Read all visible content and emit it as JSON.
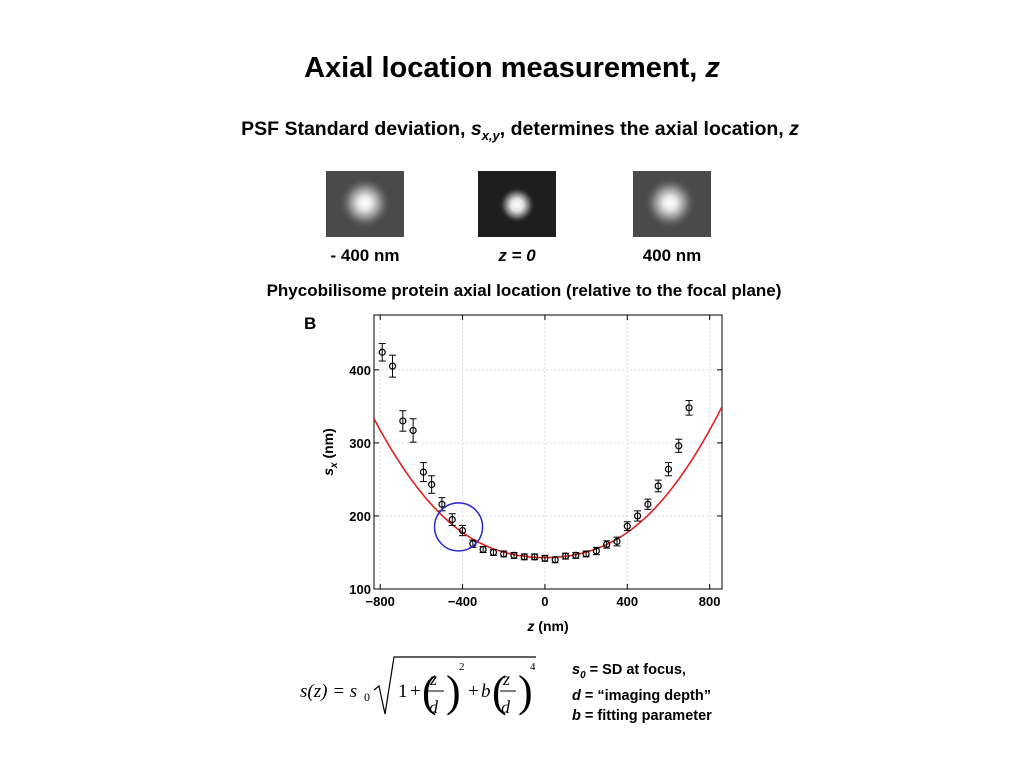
{
  "header": {
    "title": "Axial location measurement,",
    "title_var": "z",
    "subtitle_pre": "PSF Standard deviation,",
    "subtitle_sym": "s",
    "subtitle_sub": "x,y",
    "subtitle_mid": ", determines the axial location,",
    "subtitle_var": "z"
  },
  "psf_images": [
    {
      "label": "- 400 nm",
      "italic": false
    },
    {
      "label": "z = 0",
      "italic": true
    },
    {
      "label": "400 nm",
      "italic": false
    }
  ],
  "caption": "Phycobilisome protein axial location (relative to the focal plane)",
  "chart_data": {
    "type": "scatter",
    "panel_label": "B",
    "xlabel_sym": "z",
    "xlabel_unit": "(nm)",
    "ylabel_sym": "s",
    "ylabel_sub": "x",
    "ylabel_unit": "(nm)",
    "xlim": [
      -830,
      860
    ],
    "ylim": [
      100,
      475
    ],
    "xticks": [
      -800,
      -400,
      0,
      400,
      800
    ],
    "xtick_labels": [
      "−800",
      "−400",
      "0",
      "400",
      "800"
    ],
    "yticks": [
      100,
      200,
      300,
      400
    ],
    "ytick_labels": [
      "100",
      "200",
      "300",
      "400"
    ],
    "grid": true,
    "fit": {
      "s0": 143,
      "d": 640,
      "b": 0.97,
      "color": "#e02020"
    },
    "points": [
      {
        "x": -790,
        "y": 424,
        "err": 12
      },
      {
        "x": -740,
        "y": 405,
        "err": 15
      },
      {
        "x": -690,
        "y": 330,
        "err": 14
      },
      {
        "x": -640,
        "y": 317,
        "err": 16
      },
      {
        "x": -590,
        "y": 260,
        "err": 13
      },
      {
        "x": -550,
        "y": 243,
        "err": 12
      },
      {
        "x": -500,
        "y": 216,
        "err": 9
      },
      {
        "x": -450,
        "y": 195,
        "err": 8
      },
      {
        "x": -400,
        "y": 180,
        "err": 7
      },
      {
        "x": -350,
        "y": 162,
        "err": 5
      },
      {
        "x": -300,
        "y": 154,
        "err": 4
      },
      {
        "x": -250,
        "y": 150,
        "err": 4
      },
      {
        "x": -200,
        "y": 148,
        "err": 4
      },
      {
        "x": -150,
        "y": 146,
        "err": 4
      },
      {
        "x": -100,
        "y": 144,
        "err": 4
      },
      {
        "x": -50,
        "y": 144,
        "err": 4
      },
      {
        "x": 0,
        "y": 142,
        "err": 4
      },
      {
        "x": 50,
        "y": 140,
        "err": 4
      },
      {
        "x": 100,
        "y": 145,
        "err": 4
      },
      {
        "x": 150,
        "y": 146,
        "err": 4
      },
      {
        "x": 200,
        "y": 148,
        "err": 4
      },
      {
        "x": 250,
        "y": 152,
        "err": 5
      },
      {
        "x": 300,
        "y": 161,
        "err": 5
      },
      {
        "x": 350,
        "y": 165,
        "err": 6
      },
      {
        "x": 400,
        "y": 186,
        "err": 6
      },
      {
        "x": 450,
        "y": 200,
        "err": 7
      },
      {
        "x": 500,
        "y": 216,
        "err": 7
      },
      {
        "x": 550,
        "y": 241,
        "err": 8
      },
      {
        "x": 600,
        "y": 264,
        "err": 9
      },
      {
        "x": 650,
        "y": 296,
        "err": 9
      },
      {
        "x": 700,
        "y": 348,
        "err": 10
      }
    ],
    "highlight": {
      "x": -400,
      "y": 185,
      "color": "#2a2ad0"
    }
  },
  "formula": {
    "lhs": "s(z) = s",
    "lhs_sub": "0",
    "one": "1",
    "plus": "+",
    "num": "z",
    "den": "d",
    "exp1": "2",
    "b": "b",
    "exp2": "4"
  },
  "legend": {
    "s0_sym": "s",
    "s0_sub": "0",
    "s0_text": " = SD at focus,",
    "d_sym": "d",
    "d_text": " = “imaging depth”",
    "b_sym": "b",
    "b_text": " = fitting parameter"
  }
}
